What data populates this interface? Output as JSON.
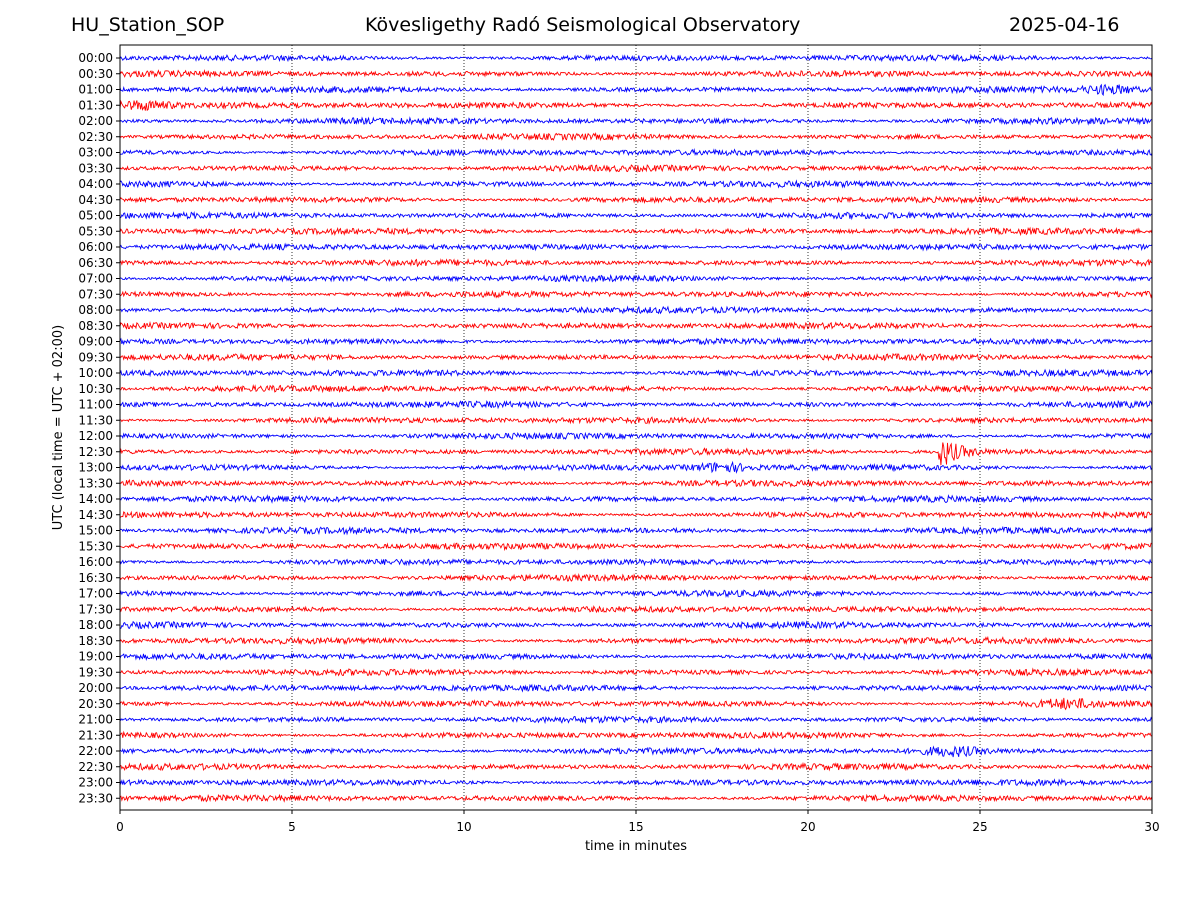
{
  "header": {
    "station": "HU_Station_SOP",
    "observatory": "Kövesligethy Radó Seismological Observatory",
    "date": "2025-04-16"
  },
  "chart_data": {
    "type": "line",
    "title": "Kövesligethy Radó Seismological Observatory",
    "xlabel": "time in minutes",
    "ylabel": "UTC (local time = UTC + 02:00)",
    "xlim": [
      0,
      30
    ],
    "x_ticks": [
      0,
      5,
      10,
      15,
      20,
      25,
      30
    ],
    "grid": "vertical dotted lines at 5-minute ticks",
    "row_labels": [
      "00:00",
      "00:30",
      "01:00",
      "01:30",
      "02:00",
      "02:30",
      "03:00",
      "03:30",
      "04:00",
      "04:30",
      "05:00",
      "05:30",
      "06:00",
      "06:30",
      "07:00",
      "07:30",
      "08:00",
      "08:30",
      "09:00",
      "09:30",
      "10:00",
      "10:30",
      "11:00",
      "11:30",
      "12:00",
      "12:30",
      "13:00",
      "13:30",
      "14:00",
      "14:30",
      "15:00",
      "15:30",
      "16:00",
      "16:30",
      "17:00",
      "17:30",
      "18:00",
      "18:30",
      "19:00",
      "19:30",
      "20:00",
      "20:30",
      "21:00",
      "21:30",
      "22:00",
      "22:30",
      "23:00",
      "23:30"
    ],
    "trace_colors": [
      "#0000ff",
      "#ff0000"
    ],
    "events": [
      {
        "row": "12:30",
        "minute": 24.0,
        "note": "largest burst"
      },
      {
        "row": "13:00",
        "minute": 17.5
      },
      {
        "row": "22:00",
        "minute": 24.2
      },
      {
        "row": "20:30",
        "minute": 27.5
      },
      {
        "row": "01:30",
        "minute": 0.6
      },
      {
        "row": "01:00",
        "minute": 28.8
      }
    ]
  }
}
